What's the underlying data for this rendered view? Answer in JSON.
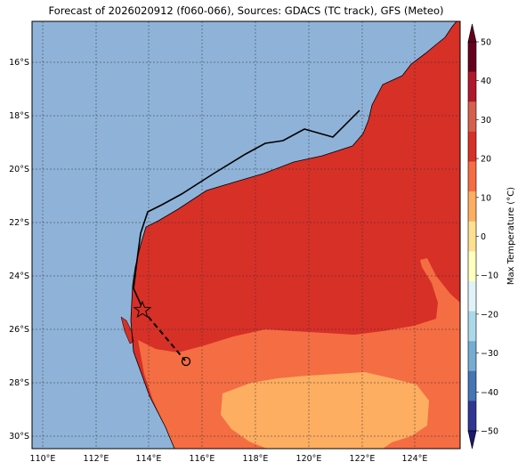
{
  "title": "Forecast of 2026020912 (f060-066), Sources: GDACS (TC track), GFS (Meteo)",
  "colors": {
    "ocean": "#8fb3d8",
    "land_30_40": "#d73027",
    "land_20_30": "#f46d43",
    "land_10_20": "#fdae61",
    "track": "#000000"
  },
  "lat_ticks": [
    "16°S",
    "18°S",
    "20°S",
    "22°S",
    "24°S",
    "26°S",
    "28°S",
    "30°S"
  ],
  "lon_ticks": [
    "110°E",
    "112°E",
    "114°E",
    "116°E",
    "118°E",
    "120°E",
    "122°E",
    "124°E"
  ],
  "colorbar": {
    "label": "Max Temperature (°C)",
    "ticks": [
      "50",
      "40",
      "30",
      "20",
      "10",
      "0",
      "−10",
      "−20",
      "−30",
      "−40",
      "−50"
    ],
    "colors": [
      "#67001f",
      "#b2182b",
      "#d6604d",
      "#d73027",
      "#f46d43",
      "#fdae61",
      "#fee090",
      "#ffffbf",
      "#e0f3f8",
      "#abd9e9",
      "#74add1",
      "#4575b4",
      "#313695",
      "#2b2a8a",
      "#1a1a6e"
    ]
  },
  "track": {
    "past_track_style": "solid",
    "forecast_track_style": "dashed",
    "current_position_marker": "star",
    "forecast_position_marker": "circle"
  }
}
